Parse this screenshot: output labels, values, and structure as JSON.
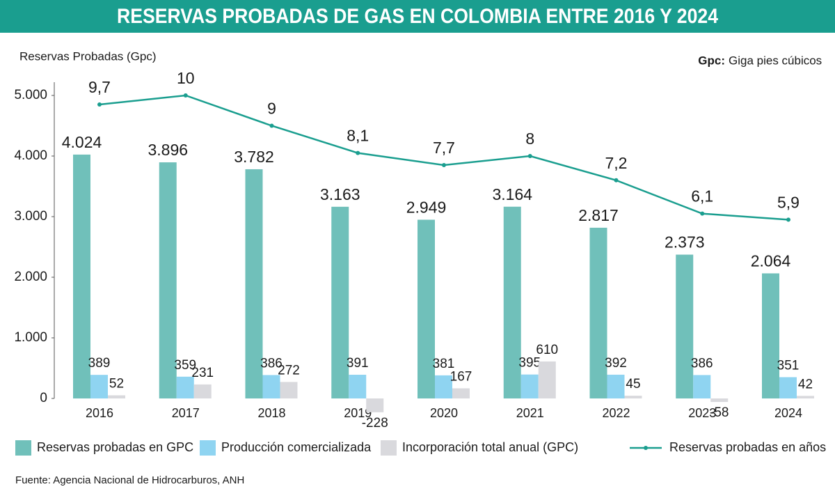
{
  "chart_data": {
    "type": "bar",
    "title": "RESERVAS PROBADAS DE GAS EN COLOMBIA ENTRE 2016 Y 2024",
    "y_axis_label": "Reservas Probadas (Gpc)",
    "note_label": "Gpc:",
    "note": "Giga pies cúbicos",
    "source": "Fuente: Agencia Nacional de Hidrocarburos, ANH",
    "categories": [
      "2016",
      "2017",
      "2018",
      "2019",
      "2020",
      "2021",
      "2022",
      "2023",
      "2024"
    ],
    "ylim": [
      0,
      5000
    ],
    "yticks": [
      0,
      {
        "value": 1000,
        "label": "1.000"
      },
      {
        "value": 2000,
        "label": "2.000"
      },
      {
        "value": 3000,
        "label": "3.000"
      },
      {
        "value": 4000,
        "label": "4.000"
      },
      {
        "value": 5000,
        "label": "5.000"
      }
    ],
    "y2lim": [
      0,
      10
    ],
    "grid": false,
    "title_color": "#1a9e8f",
    "series": [
      {
        "name": "Reservas probadas en GPC",
        "color": "#70c0ba",
        "values": [
          4024,
          3896,
          3782,
          3163,
          2949,
          3164,
          2817,
          2373,
          2064
        ],
        "value_labels": [
          "4.024",
          "3.896",
          "3.782",
          "3.163",
          "2.949",
          "3.164",
          "2.817",
          "2.373",
          "2.064"
        ]
      },
      {
        "name": "Producción comercializada",
        "color": "#8fd4f1",
        "values": [
          389,
          359,
          386,
          391,
          381,
          395,
          392,
          386,
          351
        ]
      },
      {
        "name": "Incorporación total anual (GPC)",
        "color": "#d9d9dd",
        "values": [
          52,
          231,
          272,
          -228,
          167,
          610,
          45,
          -58,
          42
        ]
      },
      {
        "name": "Reservas probadas en años",
        "color": "#1a9e8f",
        "type": "line",
        "axis": "y2",
        "values": [
          9.7,
          10,
          9,
          8.1,
          7.7,
          8,
          7.2,
          6.1,
          5.9
        ],
        "value_labels": [
          "9,7",
          "10",
          "9",
          "8,1",
          "7,7",
          "8",
          "7,2",
          "6,1",
          "5,9"
        ]
      }
    ]
  }
}
